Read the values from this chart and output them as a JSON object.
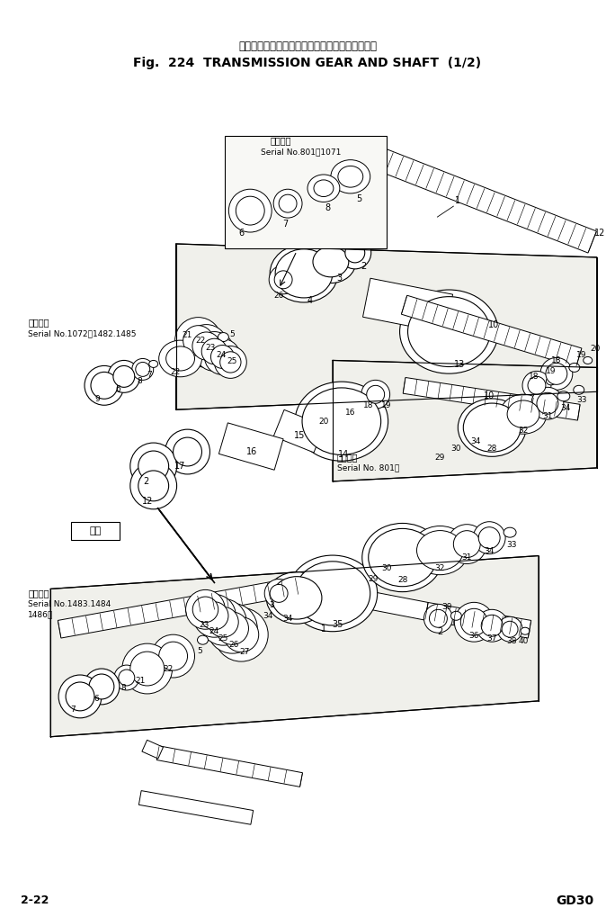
{
  "title_jp": "トランスミッション　ギヤー　および　シャフト",
  "title_en": "Fig.  224  TRANSMISSION GEAR AND SHAFT  (1/2)",
  "page_left": "2-22",
  "page_right": "GD30",
  "bg_color": "#f5f5f0",
  "lc": "black",
  "label1_jp": "適用号機",
  "label1_en": "Serial No.801～1071",
  "label2_jp": "適用号機",
  "label2_en": "Serial No.1072～1482.1485",
  "label3_jp": "適用号機",
  "label3_en": "Serial No. 801～",
  "label4_jp": "適用号番",
  "label4_en1": "Serial No.1483.1484",
  "label4_en2": "1486～",
  "arrow_label": "新方"
}
